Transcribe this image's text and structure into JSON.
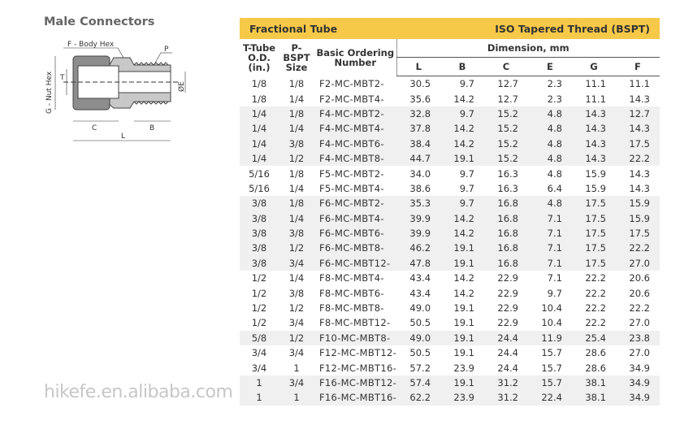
{
  "title": "Male Connectors",
  "diagram": {
    "labels": {
      "body_hex": "F - Body Hex",
      "p": "P",
      "nut_hex": "G - Nut Hex",
      "t": "T",
      "e": "ØE",
      "c": "C",
      "b": "B",
      "l": "L"
    }
  },
  "table": {
    "header_left": "Fractional Tube",
    "header_right": "ISO Tapered Thread (BSPT)",
    "col_tube": "T-Tube O.D. (in.)",
    "col_bspt": "P-BSPT Size",
    "col_order": "Basic Ordering Number",
    "dimension_label": "Dimension, mm",
    "dim_cols": [
      "L",
      "B",
      "C",
      "E",
      "G",
      "F"
    ],
    "rows": [
      [
        "1/8",
        "1/8",
        "F2-MC-MBT2-",
        "30.5",
        "9.7",
        "12.7",
        "2.3",
        "11.1",
        "11.1"
      ],
      [
        "1/8",
        "1/4",
        "F2-MC-MBT4-",
        "35.6",
        "14.2",
        "12.7",
        "2.3",
        "11.1",
        "14.3"
      ],
      [
        "1/4",
        "1/8",
        "F4-MC-MBT2-",
        "32.8",
        "9.7",
        "15.2",
        "4.8",
        "14.3",
        "12.7"
      ],
      [
        "1/4",
        "1/4",
        "F4-MC-MBT4-",
        "37.8",
        "14.2",
        "15.2",
        "4.8",
        "14.3",
        "14.3"
      ],
      [
        "1/4",
        "3/8",
        "F4-MC-MBT6-",
        "38.4",
        "14.2",
        "15.2",
        "4.8",
        "14.3",
        "17.5"
      ],
      [
        "1/4",
        "1/2",
        "F4-MC-MBT8-",
        "44.7",
        "19.1",
        "15.2",
        "4.8",
        "14.3",
        "22.2"
      ],
      [
        "5/16",
        "1/8",
        "F5-MC-MBT2-",
        "34.0",
        "9.7",
        "16.3",
        "4.8",
        "15.9",
        "14.3"
      ],
      [
        "5/16",
        "1/4",
        "F5-MC-MBT4-",
        "38.6",
        "9.7",
        "16.3",
        "6.4",
        "15.9",
        "14.3"
      ],
      [
        "3/8",
        "1/8",
        "F6-MC-MBT2-",
        "35.3",
        "9.7",
        "16.8",
        "4.8",
        "17.5",
        "15.9"
      ],
      [
        "3/8",
        "1/4",
        "F6-MC-MBT4-",
        "39.9",
        "14.2",
        "16.8",
        "7.1",
        "17.5",
        "15.9"
      ],
      [
        "3/8",
        "3/8",
        "F6-MC-MBT6-",
        "39.9",
        "14.2",
        "16.8",
        "7.1",
        "17.5",
        "17.5"
      ],
      [
        "3/8",
        "1/2",
        "F6-MC-MBT8-",
        "46.2",
        "19.1",
        "16.8",
        "7.1",
        "17.5",
        "22.2"
      ],
      [
        "3/8",
        "3/4",
        "F6-MC-MBT12-",
        "47.8",
        "19.1",
        "16.8",
        "7.1",
        "17.5",
        "27.0"
      ],
      [
        "1/2",
        "1/4",
        "F8-MC-MBT4-",
        "43.4",
        "14.2",
        "22.9",
        "7.1",
        "22.2",
        "20.6"
      ],
      [
        "1/2",
        "3/8",
        "F8-MC-MBT6-",
        "43.4",
        "14.2",
        "22.9",
        "9.7",
        "22.2",
        "20.6"
      ],
      [
        "1/2",
        "1/2",
        "F8-MC-MBT8-",
        "49.0",
        "19.1",
        "22.9",
        "10.4",
        "22.2",
        "22.2"
      ],
      [
        "1/2",
        "3/4",
        "F8-MC-MBT12-",
        "50.5",
        "19.1",
        "22.9",
        "10.4",
        "22.2",
        "27.0"
      ],
      [
        "5/8",
        "1/2",
        "F10-MC-MBT8-",
        "49.0",
        "19.1",
        "24.4",
        "11.9",
        "25.4",
        "23.8"
      ],
      [
        "3/4",
        "3/4",
        "F12-MC-MBT12-",
        "50.5",
        "19.1",
        "24.4",
        "15.7",
        "28.6",
        "27.0"
      ],
      [
        "3/4",
        "1",
        "F12-MC-MBT16-",
        "57.2",
        "23.9",
        "24.4",
        "15.7",
        "28.6",
        "34.9"
      ],
      [
        "1",
        "3/4",
        "F16-MC-MBT12-",
        "57.4",
        "19.1",
        "31.2",
        "15.7",
        "38.1",
        "34.9"
      ],
      [
        "1",
        "1",
        "F16-MC-MBT16-",
        "62.2",
        "23.9",
        "31.2",
        "22.4",
        "38.1",
        "34.9"
      ]
    ],
    "shaded_groups": [
      "1/4",
      "3/8",
      "5/8",
      "1"
    ]
  },
  "watermark": "hikefe.en.alibaba.com",
  "colors": {
    "header_bar": "#f7c948",
    "row_shade": "#f0f0f0"
  }
}
